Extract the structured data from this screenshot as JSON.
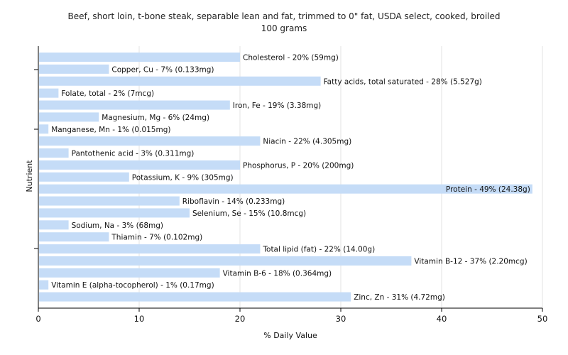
{
  "chart_data": {
    "type": "bar",
    "orientation": "horizontal",
    "title": "Beef, short loin, t-bone steak, separable lean and fat, trimmed to 0\" fat, USDA select, cooked, broiled",
    "subtitle": "100 grams",
    "xlabel": "% Daily Value",
    "ylabel": "Nutrient",
    "xlim": [
      0,
      50
    ],
    "xticks": [
      "0",
      "10",
      "20",
      "30",
      "40",
      "50"
    ],
    "grid": "vertical",
    "bar_color": "#c5dcf7",
    "categories": [
      "Cholesterol",
      "Copper, Cu",
      "Fatty acids, total saturated",
      "Folate, total",
      "Iron, Fe",
      "Magnesium, Mg",
      "Manganese, Mn",
      "Niacin",
      "Pantothenic acid",
      "Phosphorus, P",
      "Potassium, K",
      "Protein",
      "Riboflavin",
      "Selenium, Se",
      "Sodium, Na",
      "Thiamin",
      "Total lipid (fat)",
      "Vitamin B-12",
      "Vitamin B-6",
      "Vitamin E (alpha-tocopherol)",
      "Zinc, Zn"
    ],
    "values": [
      20,
      7,
      28,
      2,
      19,
      6,
      1,
      22,
      3,
      20,
      9,
      49,
      14,
      15,
      3,
      7,
      22,
      37,
      18,
      1,
      31
    ],
    "labels": [
      "Cholesterol - 20% (59mg)",
      "Copper, Cu - 7% (0.133mg)",
      "Fatty acids, total saturated - 28% (5.527g)",
      "Folate, total - 2% (7mcg)",
      "Iron, Fe - 19% (3.38mg)",
      "Magnesium, Mg - 6% (24mg)",
      "Manganese, Mn - 1% (0.015mg)",
      "Niacin - 22% (4.305mg)",
      "Pantothenic acid - 3% (0.311mg)",
      "Phosphorus, P - 20% (200mg)",
      "Potassium, K - 9% (305mg)",
      "Protein - 49% (24.38g)",
      "Riboflavin - 14% (0.233mg)",
      "Selenium, Se - 15% (10.8mcg)",
      "Sodium, Na - 3% (68mg)",
      "Thiamin - 7% (0.102mg)",
      "Total lipid (fat) - 22% (14.00g)",
      "Vitamin B-12 - 37% (2.20mcg)",
      "Vitamin B-6 - 18% (0.364mg)",
      "Vitamin E (alpha-tocopherol) - 1% (0.17mg)",
      "Zinc, Zn - 31% (4.72mg)"
    ]
  }
}
